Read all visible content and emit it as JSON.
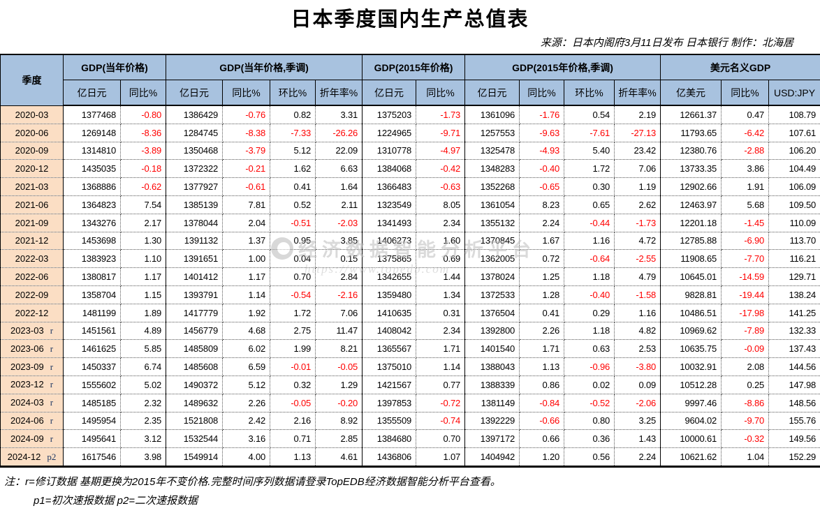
{
  "title": "日本季度国内生产总值表",
  "source": "来源：日本内阁府3月11日发布 日本银行  制作：北海居",
  "header": {
    "quarter": "季度",
    "groups": [
      {
        "label": "GDP(当年价格)",
        "cols": [
          "亿日元",
          "同比%"
        ]
      },
      {
        "label": "GDP(当年价格,季调)",
        "cols": [
          "亿日元",
          "同比%",
          "环比%",
          "折年率%"
        ]
      },
      {
        "label": "GDP(2015年价格)",
        "cols": [
          "亿日元",
          "同比%"
        ]
      },
      {
        "label": "GDP(2015年价格,季调)",
        "cols": [
          "亿日元",
          "同比%",
          "环比%",
          "折年率%"
        ]
      },
      {
        "label": "美元名义GDP",
        "cols": [
          "亿美元",
          "同比%",
          "USD:JPY"
        ]
      }
    ]
  },
  "rows": [
    {
      "quarter": "2020-03",
      "suffix": "",
      "values": [
        "1377468",
        "-0.80",
        "1386429",
        "-0.76",
        "0.82",
        "3.31",
        "1375203",
        "-1.73",
        "1361096",
        "-1.76",
        "0.54",
        "2.19",
        "12661.37",
        "0.47",
        "108.79"
      ]
    },
    {
      "quarter": "2020-06",
      "suffix": "",
      "values": [
        "1269148",
        "-8.36",
        "1284745",
        "-8.38",
        "-7.33",
        "-26.26",
        "1224965",
        "-9.71",
        "1257553",
        "-9.63",
        "-7.61",
        "-27.13",
        "11793.65",
        "-6.42",
        "107.61"
      ]
    },
    {
      "quarter": "2020-09",
      "suffix": "",
      "values": [
        "1314810",
        "-3.89",
        "1350468",
        "-3.79",
        "5.12",
        "22.09",
        "1310778",
        "-4.97",
        "1325478",
        "-4.93",
        "5.40",
        "23.42",
        "12380.76",
        "-2.88",
        "106.20"
      ]
    },
    {
      "quarter": "2020-12",
      "suffix": "",
      "values": [
        "1435035",
        "-0.18",
        "1372322",
        "-0.21",
        "1.62",
        "6.63",
        "1384068",
        "-0.42",
        "1348283",
        "-0.40",
        "1.72",
        "7.06",
        "13733.35",
        "3.86",
        "104.49"
      ]
    },
    {
      "quarter": "2021-03",
      "suffix": "",
      "values": [
        "1368886",
        "-0.62",
        "1377927",
        "-0.61",
        "0.41",
        "1.64",
        "1366483",
        "-0.63",
        "1352268",
        "-0.65",
        "0.30",
        "1.19",
        "12902.66",
        "1.91",
        "106.09"
      ]
    },
    {
      "quarter": "2021-06",
      "suffix": "",
      "values": [
        "1364823",
        "7.54",
        "1385139",
        "7.81",
        "0.52",
        "2.11",
        "1323549",
        "8.05",
        "1361054",
        "8.23",
        "0.65",
        "2.62",
        "12463.97",
        "5.68",
        "109.50"
      ]
    },
    {
      "quarter": "2021-09",
      "suffix": "",
      "values": [
        "1343276",
        "2.17",
        "1378044",
        "2.04",
        "-0.51",
        "-2.03",
        "1341493",
        "2.34",
        "1355132",
        "2.24",
        "-0.44",
        "-1.73",
        "12201.18",
        "-1.45",
        "110.09"
      ]
    },
    {
      "quarter": "2021-12",
      "suffix": "",
      "values": [
        "1453698",
        "1.30",
        "1391132",
        "1.37",
        "0.95",
        "3.85",
        "1406273",
        "1.60",
        "1370845",
        "1.67",
        "1.16",
        "4.72",
        "12785.88",
        "-6.90",
        "113.70"
      ]
    },
    {
      "quarter": "2022-03",
      "suffix": "",
      "values": [
        "1383923",
        "1.10",
        "1391651",
        "1.00",
        "0.04",
        "0.15",
        "1375865",
        "0.69",
        "1362005",
        "0.72",
        "-0.64",
        "-2.55",
        "11908.65",
        "-7.70",
        "116.21"
      ]
    },
    {
      "quarter": "2022-06",
      "suffix": "",
      "values": [
        "1380817",
        "1.17",
        "1401412",
        "1.17",
        "0.70",
        "2.84",
        "1342655",
        "1.44",
        "1378024",
        "1.25",
        "1.18",
        "4.79",
        "10645.01",
        "-14.59",
        "129.71"
      ]
    },
    {
      "quarter": "2022-09",
      "suffix": "",
      "values": [
        "1358704",
        "1.15",
        "1393791",
        "1.14",
        "-0.54",
        "-2.16",
        "1359480",
        "1.34",
        "1372533",
        "1.28",
        "-0.40",
        "-1.58",
        "9828.81",
        "-19.44",
        "138.24"
      ]
    },
    {
      "quarter": "2022-12",
      "suffix": "",
      "values": [
        "1481199",
        "1.89",
        "1417779",
        "1.92",
        "1.72",
        "7.06",
        "1410635",
        "0.31",
        "1376504",
        "0.41",
        "0.29",
        "1.16",
        "10486.51",
        "-17.98",
        "141.25"
      ]
    },
    {
      "quarter": "2023-03",
      "suffix": "r",
      "values": [
        "1451561",
        "4.89",
        "1456779",
        "4.68",
        "2.75",
        "11.47",
        "1408042",
        "2.34",
        "1392800",
        "2.26",
        "1.18",
        "4.82",
        "10969.62",
        "-7.89",
        "132.33"
      ]
    },
    {
      "quarter": "2023-06",
      "suffix": "r",
      "values": [
        "1461625",
        "5.85",
        "1485809",
        "6.02",
        "1.99",
        "8.21",
        "1365567",
        "1.71",
        "1401540",
        "1.71",
        "0.63",
        "2.53",
        "10635.75",
        "-0.09",
        "137.43"
      ]
    },
    {
      "quarter": "2023-09",
      "suffix": "r",
      "values": [
        "1450337",
        "6.74",
        "1485608",
        "6.59",
        "-0.01",
        "-0.05",
        "1375010",
        "1.14",
        "1388043",
        "1.13",
        "-0.96",
        "-3.80",
        "10032.91",
        "2.08",
        "144.56"
      ]
    },
    {
      "quarter": "2023-12",
      "suffix": "r",
      "values": [
        "1555602",
        "5.02",
        "1490372",
        "5.12",
        "0.32",
        "1.29",
        "1421567",
        "0.77",
        "1388339",
        "0.86",
        "0.02",
        "0.09",
        "10512.28",
        "0.25",
        "147.98"
      ]
    },
    {
      "quarter": "2024-03",
      "suffix": "r",
      "values": [
        "1485185",
        "2.32",
        "1489632",
        "2.26",
        "-0.05",
        "-0.20",
        "1397853",
        "-0.72",
        "1381149",
        "-0.84",
        "-0.52",
        "-2.06",
        "9997.46",
        "-8.86",
        "148.56"
      ]
    },
    {
      "quarter": "2024-06",
      "suffix": "r",
      "values": [
        "1495954",
        "2.35",
        "1521808",
        "2.42",
        "2.16",
        "8.92",
        "1355509",
        "-0.74",
        "1392229",
        "-0.66",
        "0.80",
        "3.25",
        "9604.02",
        "-9.70",
        "155.76"
      ]
    },
    {
      "quarter": "2024-09",
      "suffix": "r",
      "values": [
        "1495641",
        "3.12",
        "1532544",
        "3.16",
        "0.71",
        "2.85",
        "1384680",
        "0.70",
        "1397172",
        "0.66",
        "0.36",
        "1.43",
        "10000.61",
        "-0.32",
        "149.56"
      ]
    },
    {
      "quarter": "2024-12",
      "suffix": "p2",
      "values": [
        "1617546",
        "3.98",
        "1549914",
        "4.00",
        "1.13",
        "4.61",
        "1436806",
        "1.07",
        "1404942",
        "1.20",
        "0.56",
        "2.24",
        "10621.62",
        "1.04",
        "152.29"
      ]
    }
  ],
  "watermark": {
    "text": "经济数据智能分析平台",
    "url": "https://www.topedb.com",
    "logo": "topedb-circle-logo"
  },
  "notes": {
    "line1": "注：r=修订数据 基期更换为2015年不变价格.完整时间序列数据请登录TopEDB经济数据智能分析平台查看。",
    "line2": "p1=初次速报数据 p2=二次速报数据"
  },
  "colors": {
    "header_bg": "#a8c2df",
    "quarter_col_bg": "#fbdec4",
    "negative_text": "#ff0000",
    "suffix_text": "#1f3864",
    "watermark_gray": "#bdbdbd"
  }
}
